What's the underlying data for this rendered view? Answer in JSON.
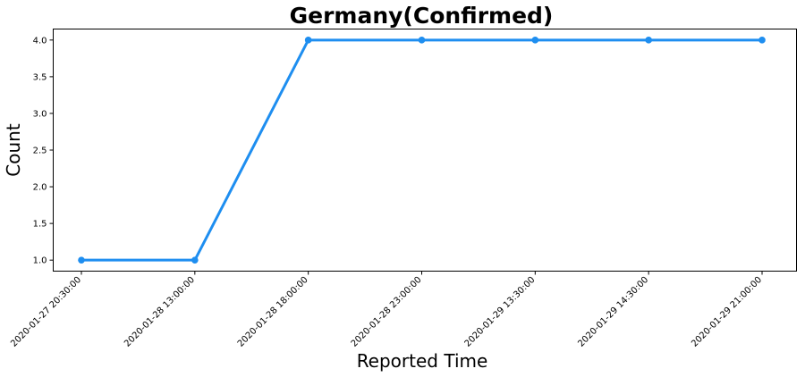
{
  "chart_data": {
    "type": "line",
    "title": "Germany(Confirmed)",
    "xlabel": "Reported Time",
    "ylabel": "Count",
    "categories": [
      "2020-01-27 20:30:00",
      "2020-01-28 13:00:00",
      "2020-01-28 18:00:00",
      "2020-01-28 23:00:00",
      "2020-01-29 13:30:00",
      "2020-01-29 14:30:00",
      "2020-01-29 21:00:00"
    ],
    "series": [
      {
        "values": [
          1,
          1,
          4,
          4,
          4,
          4,
          4
        ],
        "color": "#1e8ef0"
      }
    ],
    "ylim": [
      0.85,
      4.15
    ],
    "yticks": [
      1.0,
      1.5,
      2.0,
      2.5,
      3.0,
      3.5,
      4.0
    ],
    "ytick_labels": [
      "1.0",
      "1.5",
      "2.0",
      "2.5",
      "3.0",
      "3.5",
      "4.0"
    ],
    "grid": false,
    "legend": "none"
  }
}
